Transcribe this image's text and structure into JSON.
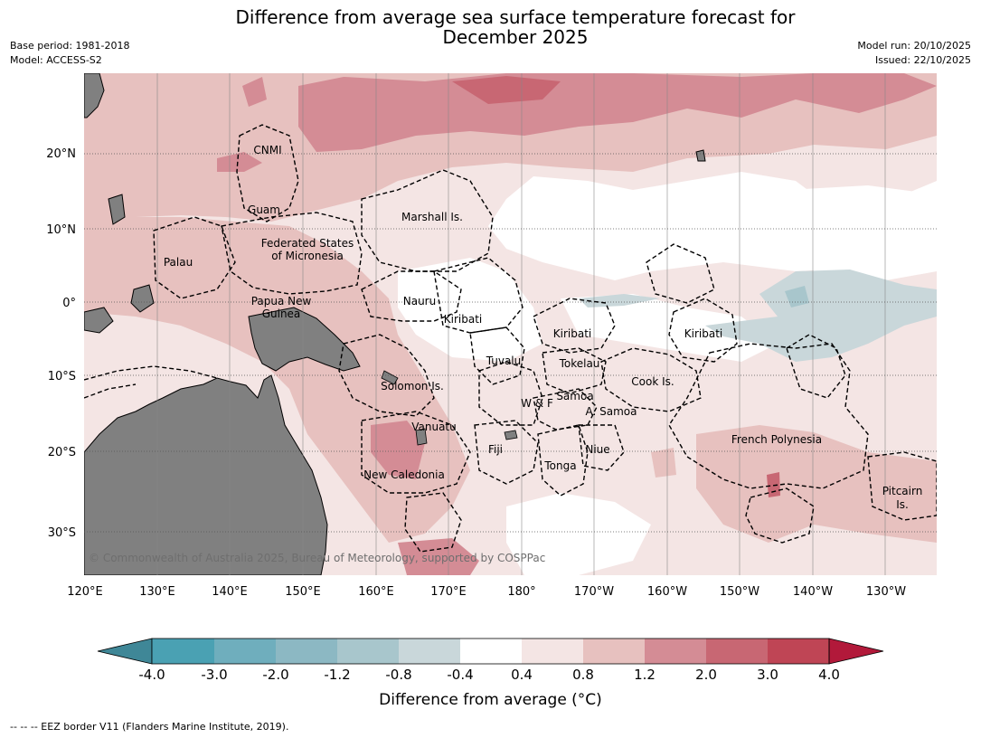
{
  "title": "Difference from average sea surface temperature forecast for\nDecember 2025",
  "meta_left": {
    "base_period": "Base period: 1981-2018",
    "model": "Model: ACCESS-S2"
  },
  "meta_right": {
    "model_run": "Model run: 20/10/2025",
    "issued": "Issued: 22/10/2025"
  },
  "lon_labels": [
    "120°E",
    "130°E",
    "140°E",
    "150°E",
    "160°E",
    "170°E",
    "180°",
    "170°W",
    "160°W",
    "150°W",
    "140°W",
    "130°W"
  ],
  "lat_labels": [
    "20°N",
    "10°N",
    "0°",
    "10°S",
    "20°S",
    "30°S"
  ],
  "regions": {
    "cnmi": "CNMI",
    "guam": "Guam",
    "marshall": "Marshall Is.",
    "fsm1": "Federated States",
    "fsm2": "of Micronesia",
    "palau": "Palau",
    "png1": "Papua New",
    "png2": "Guinea",
    "nauru": "Nauru",
    "kiribati_w": "Kiribati",
    "kiribati_c": "Kiribati",
    "kiribati_e": "Kiribati",
    "tuvalu": "Tuvalu",
    "tokelau": "Tokelau",
    "cook": "Cook Is.",
    "solomon": "Solomon Is.",
    "samoa": "Samoa",
    "wf": "W & F",
    "asamoa": "A. Samoa",
    "vanuatu": "Vanuatu",
    "fiji": "Fiji",
    "niue": "Niue",
    "tonga": "Tonga",
    "newcal": "New Caledonia",
    "frpoly": "French Polynesia",
    "pitcairn1": "Pitcairn",
    "pitcairn2": "Is."
  },
  "copyright": "© Commonwealth of Australia 2025, Bureau of Meteorology, supported by COSPPac",
  "colorbar": {
    "labels": [
      "-4.0",
      "-3.0",
      "-2.0",
      "-1.2",
      "-0.8",
      "-0.4",
      "0.4",
      "0.8",
      "1.2",
      "2.0",
      "3.0",
      "4.0"
    ],
    "colors": [
      "#3f8797",
      "#4aa1b3",
      "#6faebd",
      "#8cb8c3",
      "#a8c6cc",
      "#c9d7da",
      "#ffffff",
      "#f4e5e4",
      "#e7c1bf",
      "#d48c95",
      "#c86773",
      "#bf4555",
      "#b2193a"
    ],
    "title": "Difference from average (°C)"
  },
  "eez_note": "--  --  -- EEZ border V11 (Flanders Marine Institute, 2019).",
  "legend_colors": {
    "land": "#808080",
    "light_pink": "#f4e5e4",
    "pink": "#e7c1bf",
    "rose": "#d48c95",
    "red": "#c86773",
    "blue": "#c9d7da",
    "blue_dark": "#a8c6cc"
  }
}
